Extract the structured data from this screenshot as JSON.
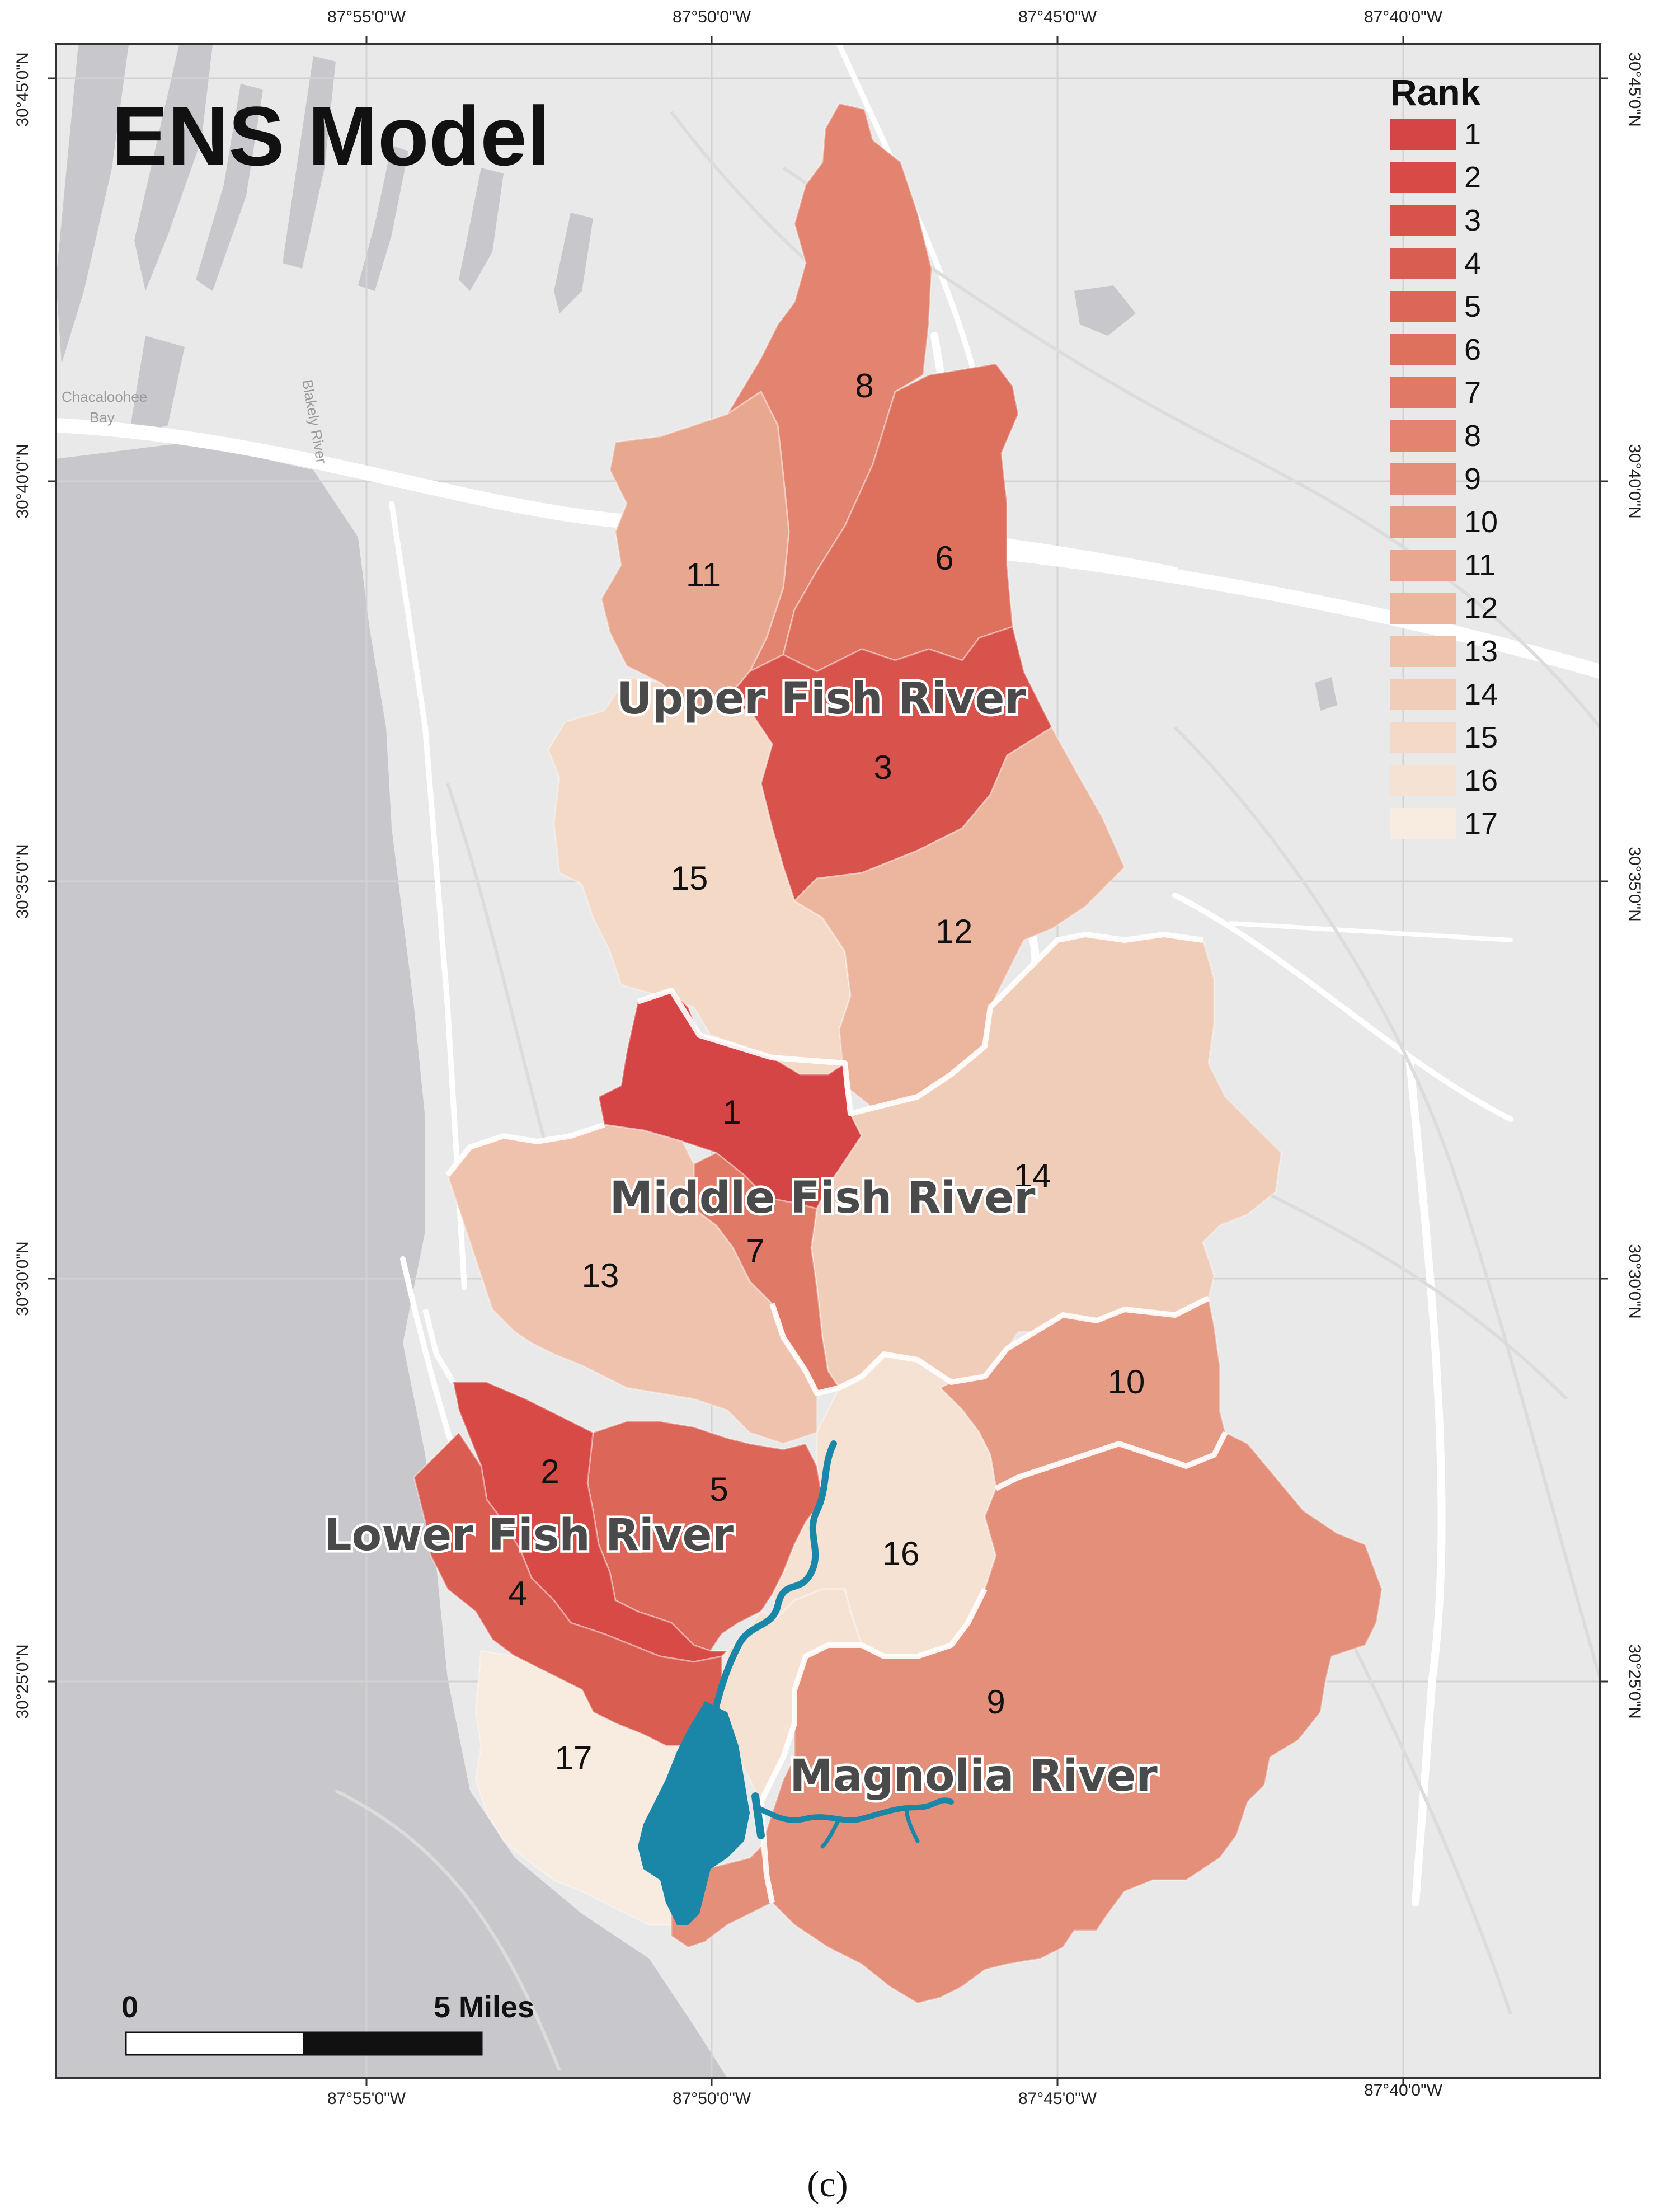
{
  "title": "ENS Model",
  "caption": "(c)",
  "axes": {
    "top_ticks": [
      "87°55'0\"W",
      "87°50'0\"W",
      "87°45'0\"W",
      "87°40'0\"W"
    ],
    "bottom_ticks": [
      "87°55'0\"W",
      "87°50'0\"W",
      "87°45'0\"W",
      "87°40'0\"W"
    ],
    "left_ticks": [
      "30°45'0\"N",
      "30°40'0\"N",
      "30°35'0\"N",
      "30°30'0\"N",
      "30°25'0\"N"
    ],
    "right_ticks": [
      "30°45'0\"N",
      "30°40'0\"N",
      "30°35'0\"N",
      "30°30'0\"N",
      "30°25'0\"N"
    ]
  },
  "legend": {
    "title": "Rank",
    "items": [
      {
        "label": "1",
        "color": "#d64545"
      },
      {
        "label": "2",
        "color": "#d74a45"
      },
      {
        "label": "3",
        "color": "#d8534b"
      },
      {
        "label": "4",
        "color": "#da5d51"
      },
      {
        "label": "5",
        "color": "#dc6657"
      },
      {
        "label": "6",
        "color": "#de705e"
      },
      {
        "label": "7",
        "color": "#e07a66"
      },
      {
        "label": "8",
        "color": "#e2846f"
      },
      {
        "label": "9",
        "color": "#e38f79"
      },
      {
        "label": "10",
        "color": "#e59b84"
      },
      {
        "label": "11",
        "color": "#e8a890"
      },
      {
        "label": "12",
        "color": "#ebb59e"
      },
      {
        "label": "13",
        "color": "#eec2ad"
      },
      {
        "label": "14",
        "color": "#f0cdb8"
      },
      {
        "label": "15",
        "color": "#f3d9c6"
      },
      {
        "label": "16",
        "color": "#f5e2d3"
      },
      {
        "label": "17",
        "color": "#f8ebe0"
      }
    ]
  },
  "subbasins": [
    {
      "rank": "1",
      "color": "#d64545"
    },
    {
      "rank": "2",
      "color": "#d74a45"
    },
    {
      "rank": "3",
      "color": "#d8534b"
    },
    {
      "rank": "4",
      "color": "#da5d51"
    },
    {
      "rank": "5",
      "color": "#dc6657"
    },
    {
      "rank": "6",
      "color": "#de705e"
    },
    {
      "rank": "7",
      "color": "#e07a66"
    },
    {
      "rank": "8",
      "color": "#e2846f"
    },
    {
      "rank": "9",
      "color": "#e38f79"
    },
    {
      "rank": "10",
      "color": "#e59b84"
    },
    {
      "rank": "11",
      "color": "#e8a890"
    },
    {
      "rank": "12",
      "color": "#ebb59e"
    },
    {
      "rank": "13",
      "color": "#eec2ad"
    },
    {
      "rank": "14",
      "color": "#f0cdb8"
    },
    {
      "rank": "15",
      "color": "#f3d9c6"
    },
    {
      "rank": "16",
      "color": "#f5e2d3"
    },
    {
      "rank": "17",
      "color": "#f8ebe0"
    }
  ],
  "regions": {
    "upper": "Upper Fish River",
    "middle": "Middle Fish River",
    "lower": "Lower Fish River",
    "magnolia": "Magnolia River"
  },
  "scale_bar": {
    "start": "0",
    "end": "5 Miles"
  },
  "places": {
    "bay_line1": "Chacaloohee",
    "bay_line2": "Bay",
    "river": "Blakely River"
  },
  "colors": {
    "water": "#1a86a8",
    "land": "#e9e9e9",
    "bay": "#c8c8cc",
    "frame": "#333333"
  }
}
